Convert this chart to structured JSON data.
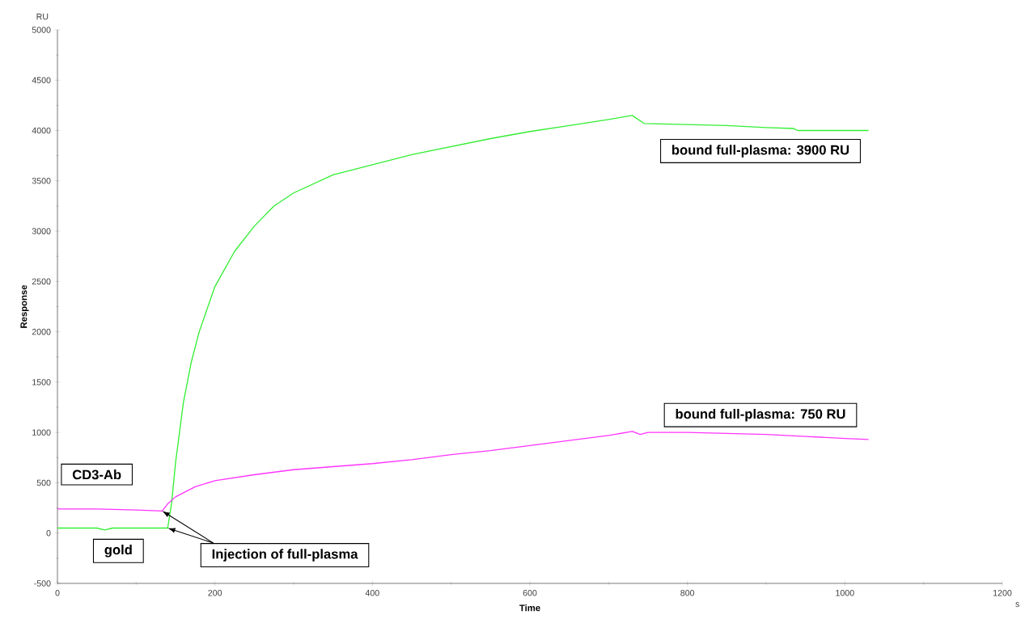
{
  "chart_data": {
    "type": "line",
    "xlabel": "Time",
    "ylabel": "Response",
    "xlim": [
      0,
      1200
    ],
    "xticks": [
      0,
      200,
      400,
      600,
      800,
      1000,
      1200
    ],
    "ylim": [
      -500,
      5000
    ],
    "yticks": [
      -500,
      0,
      500,
      1000,
      1500,
      2000,
      2500,
      3000,
      3500,
      4000,
      4500,
      5000
    ],
    "grid": false,
    "legend": false,
    "marker": "none",
    "line_style": "solid",
    "series": [
      {
        "name": "gold",
        "color": "#33ee33",
        "x": [
          0,
          50,
          60,
          70,
          100,
          140,
          145,
          150,
          160,
          170,
          180,
          200,
          225,
          250,
          275,
          300,
          350,
          400,
          450,
          500,
          550,
          600,
          650,
          700,
          730,
          745,
          800,
          850,
          900,
          935,
          940,
          1000,
          1030
        ],
        "values": [
          50,
          50,
          30,
          50,
          50,
          50,
          300,
          700,
          1300,
          1700,
          2000,
          2450,
          2800,
          3050,
          3250,
          3380,
          3560,
          3660,
          3760,
          3840,
          3920,
          3990,
          4050,
          4110,
          4150,
          4070,
          4060,
          4050,
          4030,
          4020,
          4000,
          4000,
          4000
        ]
      },
      {
        "name": "CD3-Ab",
        "color": "#ff33ff",
        "x": [
          0,
          50,
          100,
          133,
          140,
          150,
          175,
          200,
          250,
          300,
          350,
          400,
          450,
          500,
          550,
          600,
          650,
          700,
          730,
          740,
          750,
          800,
          850,
          900,
          950,
          1000,
          1030
        ],
        "values": [
          240,
          240,
          230,
          220,
          290,
          360,
          460,
          520,
          580,
          630,
          660,
          690,
          730,
          780,
          820,
          870,
          920,
          970,
          1010,
          980,
          1000,
          1000,
          990,
          980,
          960,
          940,
          930
        ]
      }
    ],
    "annotations": [
      "bound full-plasma: 3900 RU",
      "bound full-plasma: 750 RU",
      {
        "text": "Injection of full-plasma",
        "x": 133,
        "y": 220
      },
      "RU",
      "s"
    ]
  }
}
